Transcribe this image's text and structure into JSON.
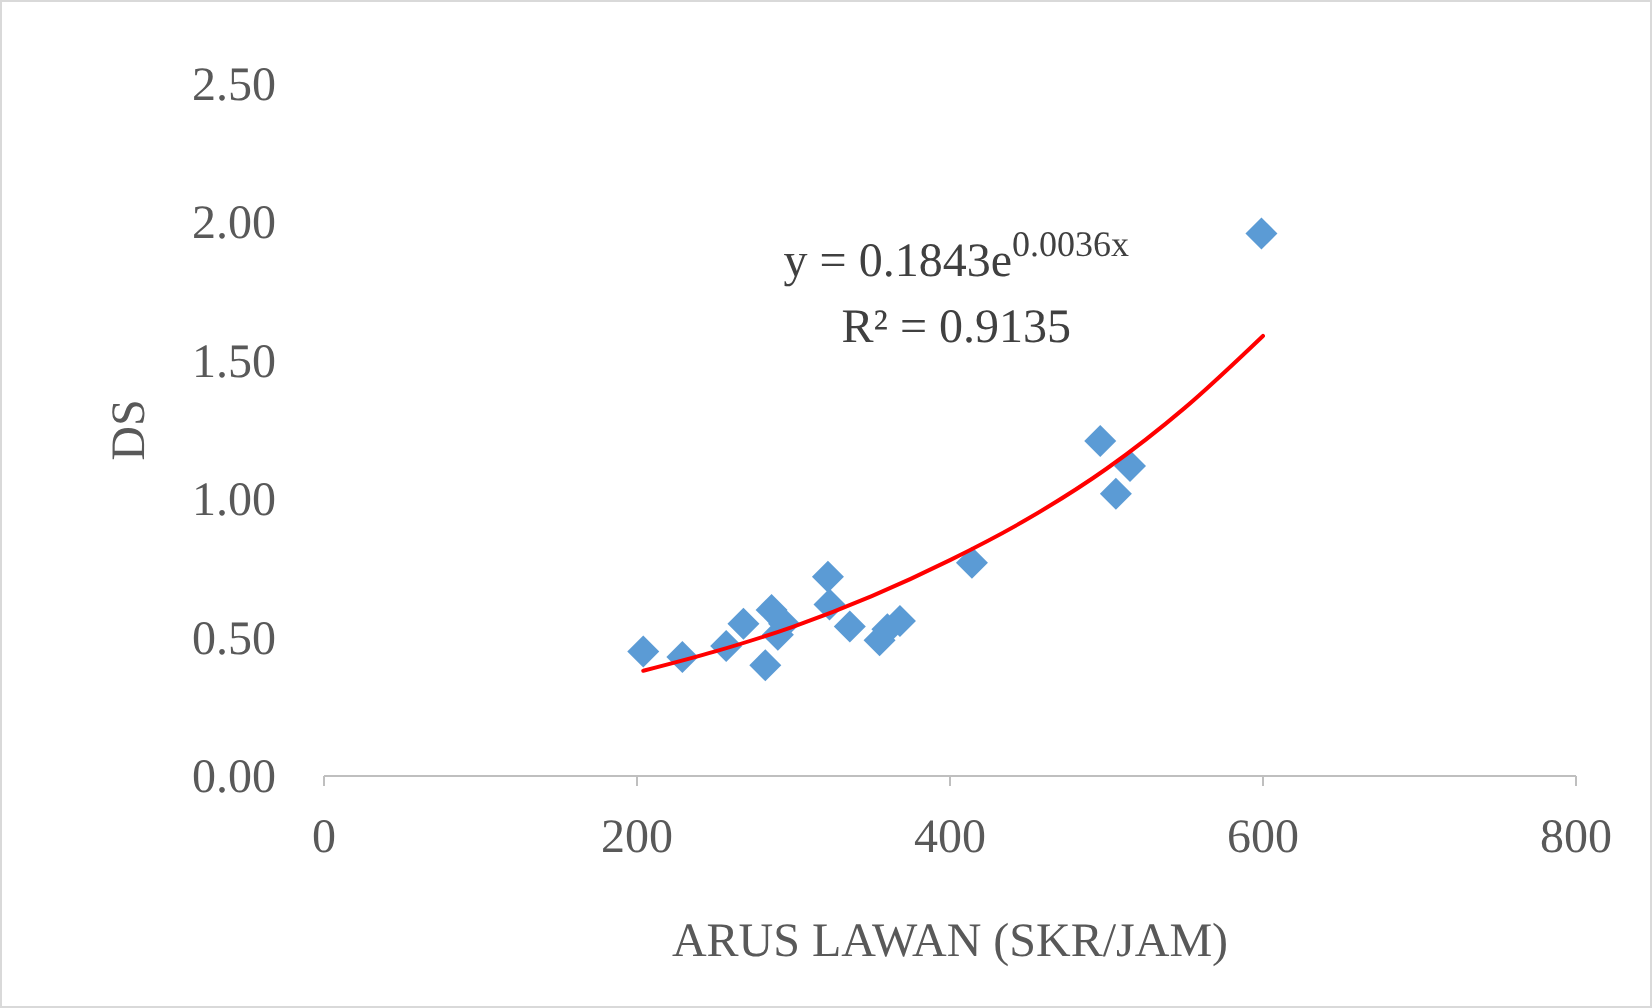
{
  "chart_data": {
    "type": "scatter",
    "xlabel": "ARUS LAWAN (SKR/JAM)",
    "ylabel": "DS",
    "xlim": [
      0,
      800
    ],
    "xticks": [
      0,
      200,
      400,
      600,
      800
    ],
    "ylim": [
      0,
      2.5
    ],
    "yticks": [
      {
        "value": 0,
        "label": "0.00"
      },
      {
        "value": 0.5,
        "label": "0.50"
      },
      {
        "value": 1,
        "label": "1.00"
      },
      {
        "value": 1.5,
        "label": "1.50"
      },
      {
        "value": 2,
        "label": "2.00"
      },
      {
        "value": 2.5,
        "label": "2.50"
      }
    ],
    "grid": false,
    "series": [
      {
        "color": "#5b9bd5",
        "marker": "diamond",
        "x": [
          204,
          229,
          257,
          268,
          282,
          286,
          290,
          294,
          322,
          323,
          336,
          355,
          360,
          368,
          414,
          496,
          506,
          515,
          599
        ],
        "values": [
          0.45,
          0.43,
          0.47,
          0.55,
          0.4,
          0.6,
          0.51,
          0.55,
          0.72,
          0.62,
          0.54,
          0.49,
          0.53,
          0.56,
          0.77,
          1.21,
          1.02,
          1.12,
          1.96
        ]
      },
      {
        "type": "line",
        "color": "#ff0000",
        "line_style": "solid",
        "marker": "none",
        "x": [
          204,
          250,
          300,
          350,
          400,
          450,
          500,
          550,
          600
        ],
        "values": [
          0.38,
          0.45,
          0.54,
          0.65,
          0.78,
          0.93,
          1.11,
          1.33,
          1.59
        ]
      }
    ],
    "annotations": [
      "y = 0.1843e$^{0.0036x}$",
      "R² = 0.9135"
    ]
  }
}
